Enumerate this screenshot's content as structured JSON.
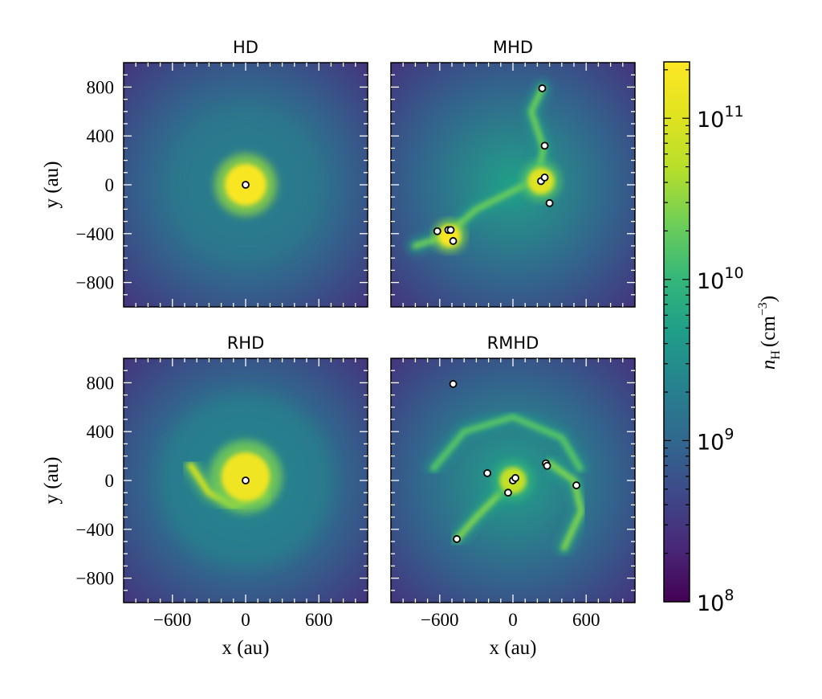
{
  "chart_data": {
    "type": "heatmap",
    "colorscale": "viridis",
    "xlabel": "x (au)",
    "ylabel": "y (au)",
    "xlim": [
      -1000,
      1000
    ],
    "ylim": [
      -1000,
      1000
    ],
    "xticks": [
      -600,
      0,
      600
    ],
    "yticks": [
      -800,
      -400,
      0,
      400,
      800
    ],
    "colorbar": {
      "label": "n_H (cm^-3)",
      "label_main": "n",
      "label_sub": "H",
      "label_unit": "(cm",
      "label_exp": "−3",
      "label_close": ")",
      "log_scale": true,
      "range": [
        8,
        11.35
      ],
      "ticks": [
        {
          "base": "10",
          "exp": "8",
          "value": 8
        },
        {
          "base": "10",
          "exp": "9",
          "value": 9
        },
        {
          "base": "10",
          "exp": "10",
          "value": 10
        },
        {
          "base": "10",
          "exp": "11",
          "value": 11
        }
      ]
    },
    "panels": [
      {
        "title": "HD",
        "sinks": [
          [
            0,
            0
          ]
        ],
        "features": [
          {
            "kind": "core",
            "x": 0,
            "y": 0,
            "r": 170,
            "density": 11.3
          },
          {
            "kind": "halo",
            "x": 0,
            "y": 0,
            "r": 600,
            "density": 9.2
          }
        ]
      },
      {
        "title": "MHD",
        "sinks": [
          [
            240,
            790
          ],
          [
            260,
            320
          ],
          [
            230,
            30
          ],
          [
            260,
            60
          ],
          [
            300,
            -150
          ],
          [
            -620,
            -380
          ],
          [
            -530,
            -370
          ],
          [
            -510,
            -370
          ],
          [
            -490,
            -460
          ]
        ],
        "features": [
          {
            "kind": "core",
            "x": -520,
            "y": -420,
            "r": 90,
            "density": 11.3
          },
          {
            "kind": "core",
            "x": 230,
            "y": 30,
            "r": 110,
            "density": 11.0
          },
          {
            "kind": "filament",
            "density": 10.3,
            "path": [
              [
                -800,
                -500
              ],
              [
                -550,
                -420
              ],
              [
                -300,
                -200
              ],
              [
                0,
                -50
              ],
              [
                200,
                50
              ],
              [
                250,
                300
              ],
              [
                150,
                600
              ],
              [
                240,
                790
              ]
            ]
          }
        ]
      },
      {
        "title": "RHD",
        "sinks": [
          [
            0,
            0
          ]
        ],
        "features": [
          {
            "kind": "core",
            "x": 0,
            "y": 30,
            "r": 200,
            "density": 11.2
          },
          {
            "kind": "arm",
            "density": 10.9,
            "path": [
              [
                -450,
                120
              ],
              [
                -300,
                -100
              ],
              [
                -100,
                -200
              ],
              [
                150,
                -120
              ]
            ]
          },
          {
            "kind": "halo",
            "x": 0,
            "y": 0,
            "r": 700,
            "density": 9.3
          }
        ]
      },
      {
        "title": "RMHD",
        "sinks": [
          [
            -490,
            790
          ],
          [
            -210,
            60
          ],
          [
            -40,
            -100
          ],
          [
            0,
            0
          ],
          [
            20,
            20
          ],
          [
            270,
            140
          ],
          [
            280,
            120
          ],
          [
            520,
            -40
          ],
          [
            -460,
            -480
          ]
        ],
        "features": [
          {
            "kind": "core",
            "x": 0,
            "y": 0,
            "r": 110,
            "density": 10.8
          },
          {
            "kind": "arm",
            "density": 10.4,
            "path": [
              [
                -460,
                -480
              ],
              [
                -300,
                -300
              ],
              [
                -100,
                -100
              ],
              [
                0,
                0
              ]
            ]
          },
          {
            "kind": "arm",
            "density": 10.4,
            "path": [
              [
                300,
                140
              ],
              [
                500,
                0
              ],
              [
                560,
                -250
              ],
              [
                420,
                -550
              ]
            ]
          },
          {
            "kind": "arm",
            "density": 10.2,
            "path": [
              [
                -650,
                100
              ],
              [
                -400,
                400
              ],
              [
                0,
                520
              ],
              [
                400,
                350
              ],
              [
                550,
                100
              ]
            ]
          }
        ]
      }
    ]
  }
}
